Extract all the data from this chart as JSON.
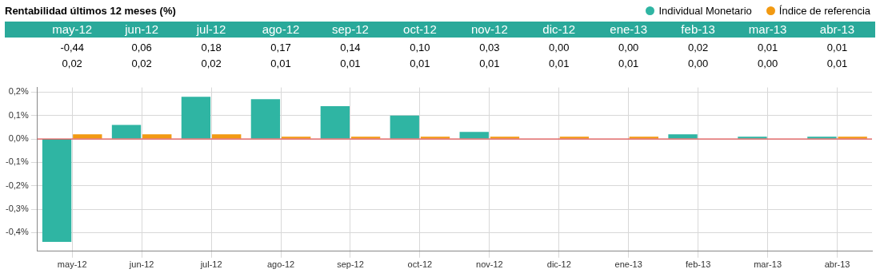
{
  "chart_data": {
    "type": "bar",
    "title": "Rentabilidad últimos 12 meses (%)",
    "categories": [
      "may-12",
      "jun-12",
      "jul-12",
      "ago-12",
      "sep-12",
      "oct-12",
      "nov-12",
      "dic-12",
      "ene-13",
      "feb-13",
      "mar-13",
      "abr-13"
    ],
    "series": [
      {
        "name": "Individual Monetario",
        "color": "#2fb5a3",
        "values": [
          -0.44,
          0.06,
          0.18,
          0.17,
          0.14,
          0.1,
          0.03,
          0.0,
          0.0,
          0.02,
          0.01,
          0.01
        ],
        "value_labels": [
          "-0,44",
          "0,06",
          "0,18",
          "0,17",
          "0,14",
          "0,10",
          "0,03",
          "0,00",
          "0,00",
          "0,02",
          "0,01",
          "0,01"
        ]
      },
      {
        "name": "Índice de referencia",
        "color": "#f29a12",
        "values": [
          0.02,
          0.02,
          0.02,
          0.01,
          0.01,
          0.01,
          0.01,
          0.01,
          0.01,
          0.0,
          0.0,
          0.01
        ],
        "value_labels": [
          "0,02",
          "0,02",
          "0,02",
          "0,01",
          "0,01",
          "0,01",
          "0,01",
          "0,01",
          "0,01",
          "0,00",
          "0,00",
          "0,01"
        ]
      }
    ],
    "ylim": [
      -0.48,
      0.22
    ],
    "yticks": [
      {
        "value": -0.4,
        "label": "-0,4%"
      },
      {
        "value": -0.3,
        "label": "-0,3%"
      },
      {
        "value": -0.2,
        "label": "-0,2%"
      },
      {
        "value": -0.1,
        "label": "-0,1%"
      },
      {
        "value": 0,
        "label": "0,0%"
      },
      {
        "value": 0.1,
        "label": "0,1%"
      },
      {
        "value": 0.2,
        "label": "0,2%"
      }
    ],
    "ref_lines": [
      {
        "axis": "y",
        "value": 0,
        "color": "#e03030"
      }
    ],
    "grid": true,
    "legend": "top"
  }
}
